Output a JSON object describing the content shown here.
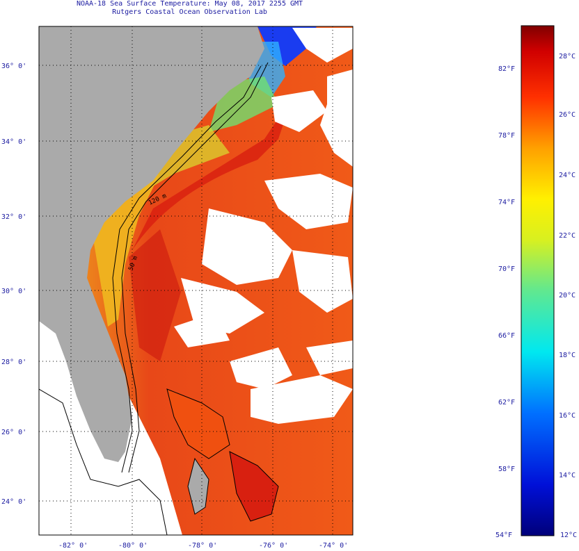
{
  "title": {
    "line1": "NOAA-18 Sea Surface Temperature:  May 08, 2017 2255 GMT",
    "line2": "Rutgers Coastal Ocean Observation Lab"
  },
  "map": {
    "lat_labels": [
      "36° 0'",
      "34° 0'",
      "32° 0'",
      "30° 0'",
      "28° 0'",
      "26° 0'",
      "24° 0'"
    ],
    "lon_labels": [
      "-82° 0'",
      "-80° 0'",
      "-78° 0'",
      "-76° 0'",
      "-74° 0'"
    ],
    "contour_labels": [
      "120 m",
      "50 m"
    ]
  },
  "colorbar": {
    "fahrenheit": [
      "82°F",
      "78°F",
      "74°F",
      "70°F",
      "66°F",
      "62°F",
      "58°F",
      "54°F"
    ],
    "celsius": [
      "28°C",
      "26°C",
      "24°C",
      "22°C",
      "20°C",
      "18°C",
      "16°C",
      "14°C",
      "12°C"
    ]
  },
  "colors": {
    "land": "#aaaaaa",
    "warm": "#e82a10",
    "cool": "#1a3cf0",
    "text": "#1a1aa0"
  }
}
